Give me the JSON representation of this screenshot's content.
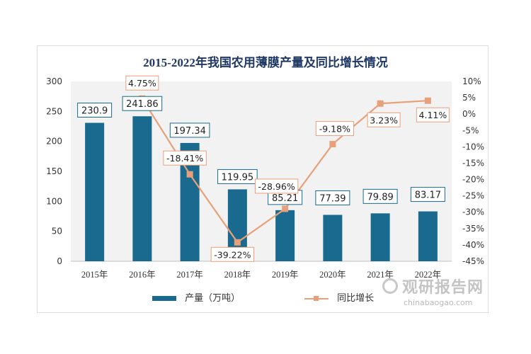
{
  "chart_data": {
    "type": "bar",
    "title": "2015-2022年我国农用薄膜产量及同比增长情况",
    "categories": [
      "2015年",
      "2016年",
      "2017年",
      "2018年",
      "2019年",
      "2020年",
      "2021年",
      "2022年"
    ],
    "series": [
      {
        "name": "产量（万吨）",
        "type": "bar",
        "axis": "left",
        "values": [
          230.9,
          241.86,
          197.34,
          119.95,
          85.21,
          77.39,
          79.89,
          83.17
        ],
        "labels": [
          "230.9",
          "241.86",
          "197.34",
          "119.95",
          "85.21",
          "77.39",
          "79.89",
          "83.17"
        ]
      },
      {
        "name": "同比增长",
        "type": "line",
        "axis": "right",
        "values": [
          null,
          4.75,
          -18.41,
          -39.22,
          -28.96,
          -9.18,
          3.23,
          4.11
        ],
        "labels": [
          "",
          "4.75%",
          "-18.41%",
          "-39.22%",
          "-28.96%",
          "-9.18%",
          "3.23%",
          "4.11%"
        ]
      }
    ],
    "left_axis": {
      "ylim": [
        0,
        300
      ],
      "ticks": [
        "0",
        "50",
        "100",
        "150",
        "200",
        "250",
        "300"
      ]
    },
    "right_axis": {
      "ylim": [
        -45,
        10
      ],
      "ticks": [
        "10%",
        "5%",
        "0%",
        "-5%",
        "-10%",
        "-15%",
        "-20%",
        "-25%",
        "-30%",
        "-35%",
        "-40%",
        "-45%"
      ]
    },
    "legend_position": "bottom",
    "grid": false
  },
  "colors": {
    "bar": "#1a6a8f",
    "line": "#e8a07a",
    "label_border": "#1a6a8f",
    "line_label_border": "#e8a07a",
    "plot_bg": "#f2f2f2",
    "title": "#1f3864"
  },
  "watermark": {
    "name": "观研报告网",
    "url": "chinabaogao.com"
  }
}
